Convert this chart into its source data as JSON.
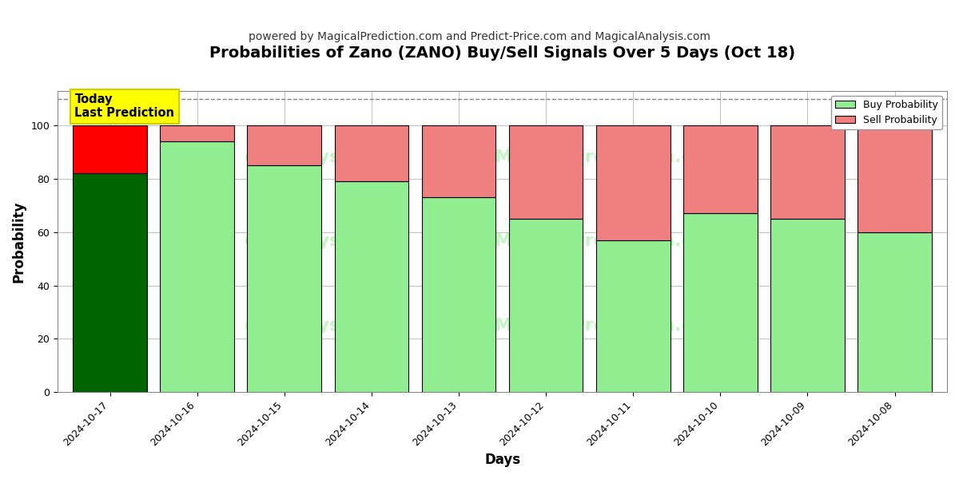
{
  "title": "Probabilities of Zano (ZANO) Buy/Sell Signals Over 5 Days (Oct 18)",
  "subtitle": "powered by MagicalPrediction.com and Predict-Price.com and MagicalAnalysis.com",
  "xlabel": "Days",
  "ylabel": "Probability",
  "dates": [
    "2024-10-17",
    "2024-10-16",
    "2024-10-15",
    "2024-10-14",
    "2024-10-13",
    "2024-10-12",
    "2024-10-11",
    "2024-10-10",
    "2024-10-09",
    "2024-10-08"
  ],
  "buy_values": [
    82,
    94,
    85,
    79,
    73,
    65,
    57,
    67,
    65,
    60
  ],
  "sell_values": [
    18,
    6,
    15,
    21,
    27,
    35,
    43,
    33,
    35,
    40
  ],
  "today_buy_color": "#006400",
  "today_sell_color": "#FF0000",
  "buy_color": "#90EE90",
  "sell_color": "#F08080",
  "bar_edge_color": "#000000",
  "ylim": [
    0,
    113
  ],
  "dashed_line_y": 110,
  "annotation_text": "Today\nLast Prediction",
  "annotation_bg": "#FFFF00",
  "legend_buy_label": "Buy Probability",
  "legend_sell_label": "Sell Probability",
  "grid_color": "#C0C0C0",
  "background_color": "#FFFFFF",
  "title_fontsize": 14,
  "subtitle_fontsize": 10,
  "axis_label_fontsize": 12,
  "tick_fontsize": 9,
  "bar_width": 0.85
}
